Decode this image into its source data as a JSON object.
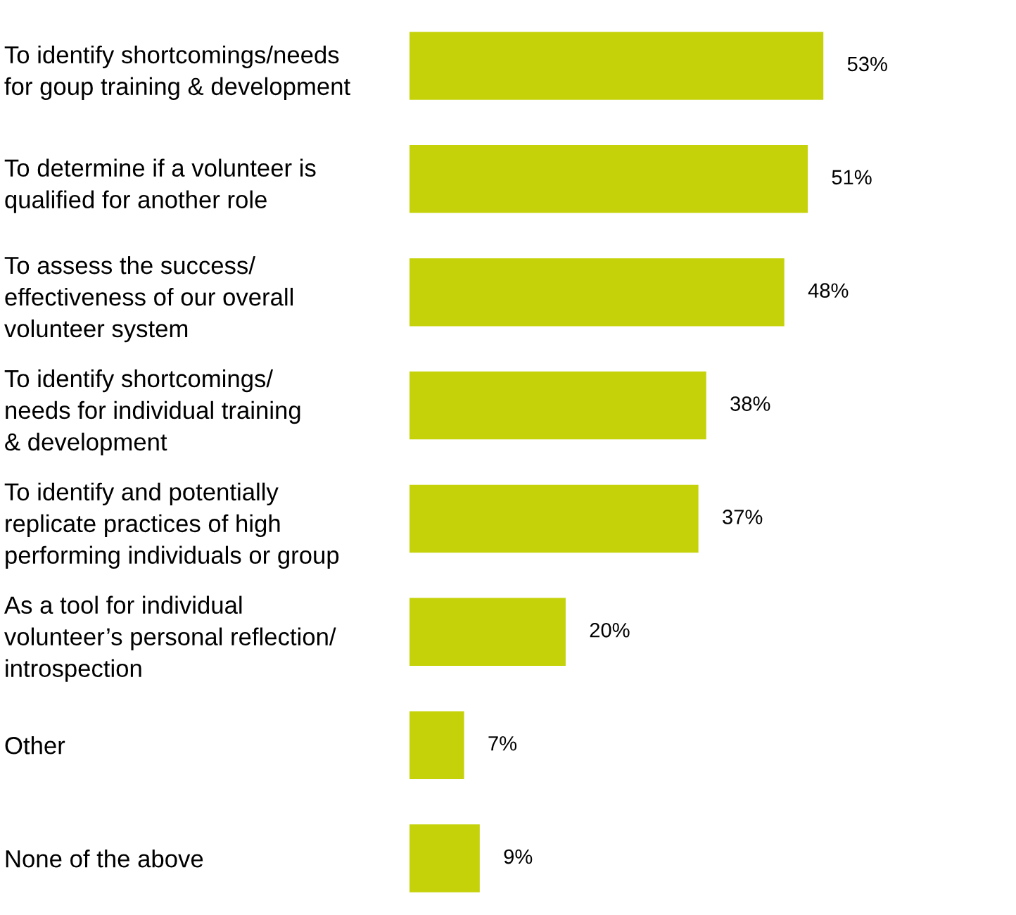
{
  "chart_data": {
    "type": "bar",
    "orientation": "horizontal",
    "categories": [
      "To identify shortcomings/needs\nfor goup training & development",
      "To determine if a volunteer is\nqualified for another role",
      "To assess the success/\neffectiveness of our overall\nvolunteer system",
      "To identify shortcomings/\nneeds for individual training\n& development",
      "To identify and potentially\nreplicate practices of high\nperforming individuals or group",
      "As a tool for individual\nvolunteer’s personal reflection/\nintrospection",
      "Other",
      "None of the above"
    ],
    "values": [
      53,
      51,
      48,
      38,
      37,
      20,
      7,
      9
    ],
    "value_labels": [
      "53%",
      "51%",
      "48%",
      "38%",
      "37%",
      "20%",
      "7%",
      "9%"
    ],
    "color": "#c5d20a",
    "grid": false,
    "legend": false
  }
}
